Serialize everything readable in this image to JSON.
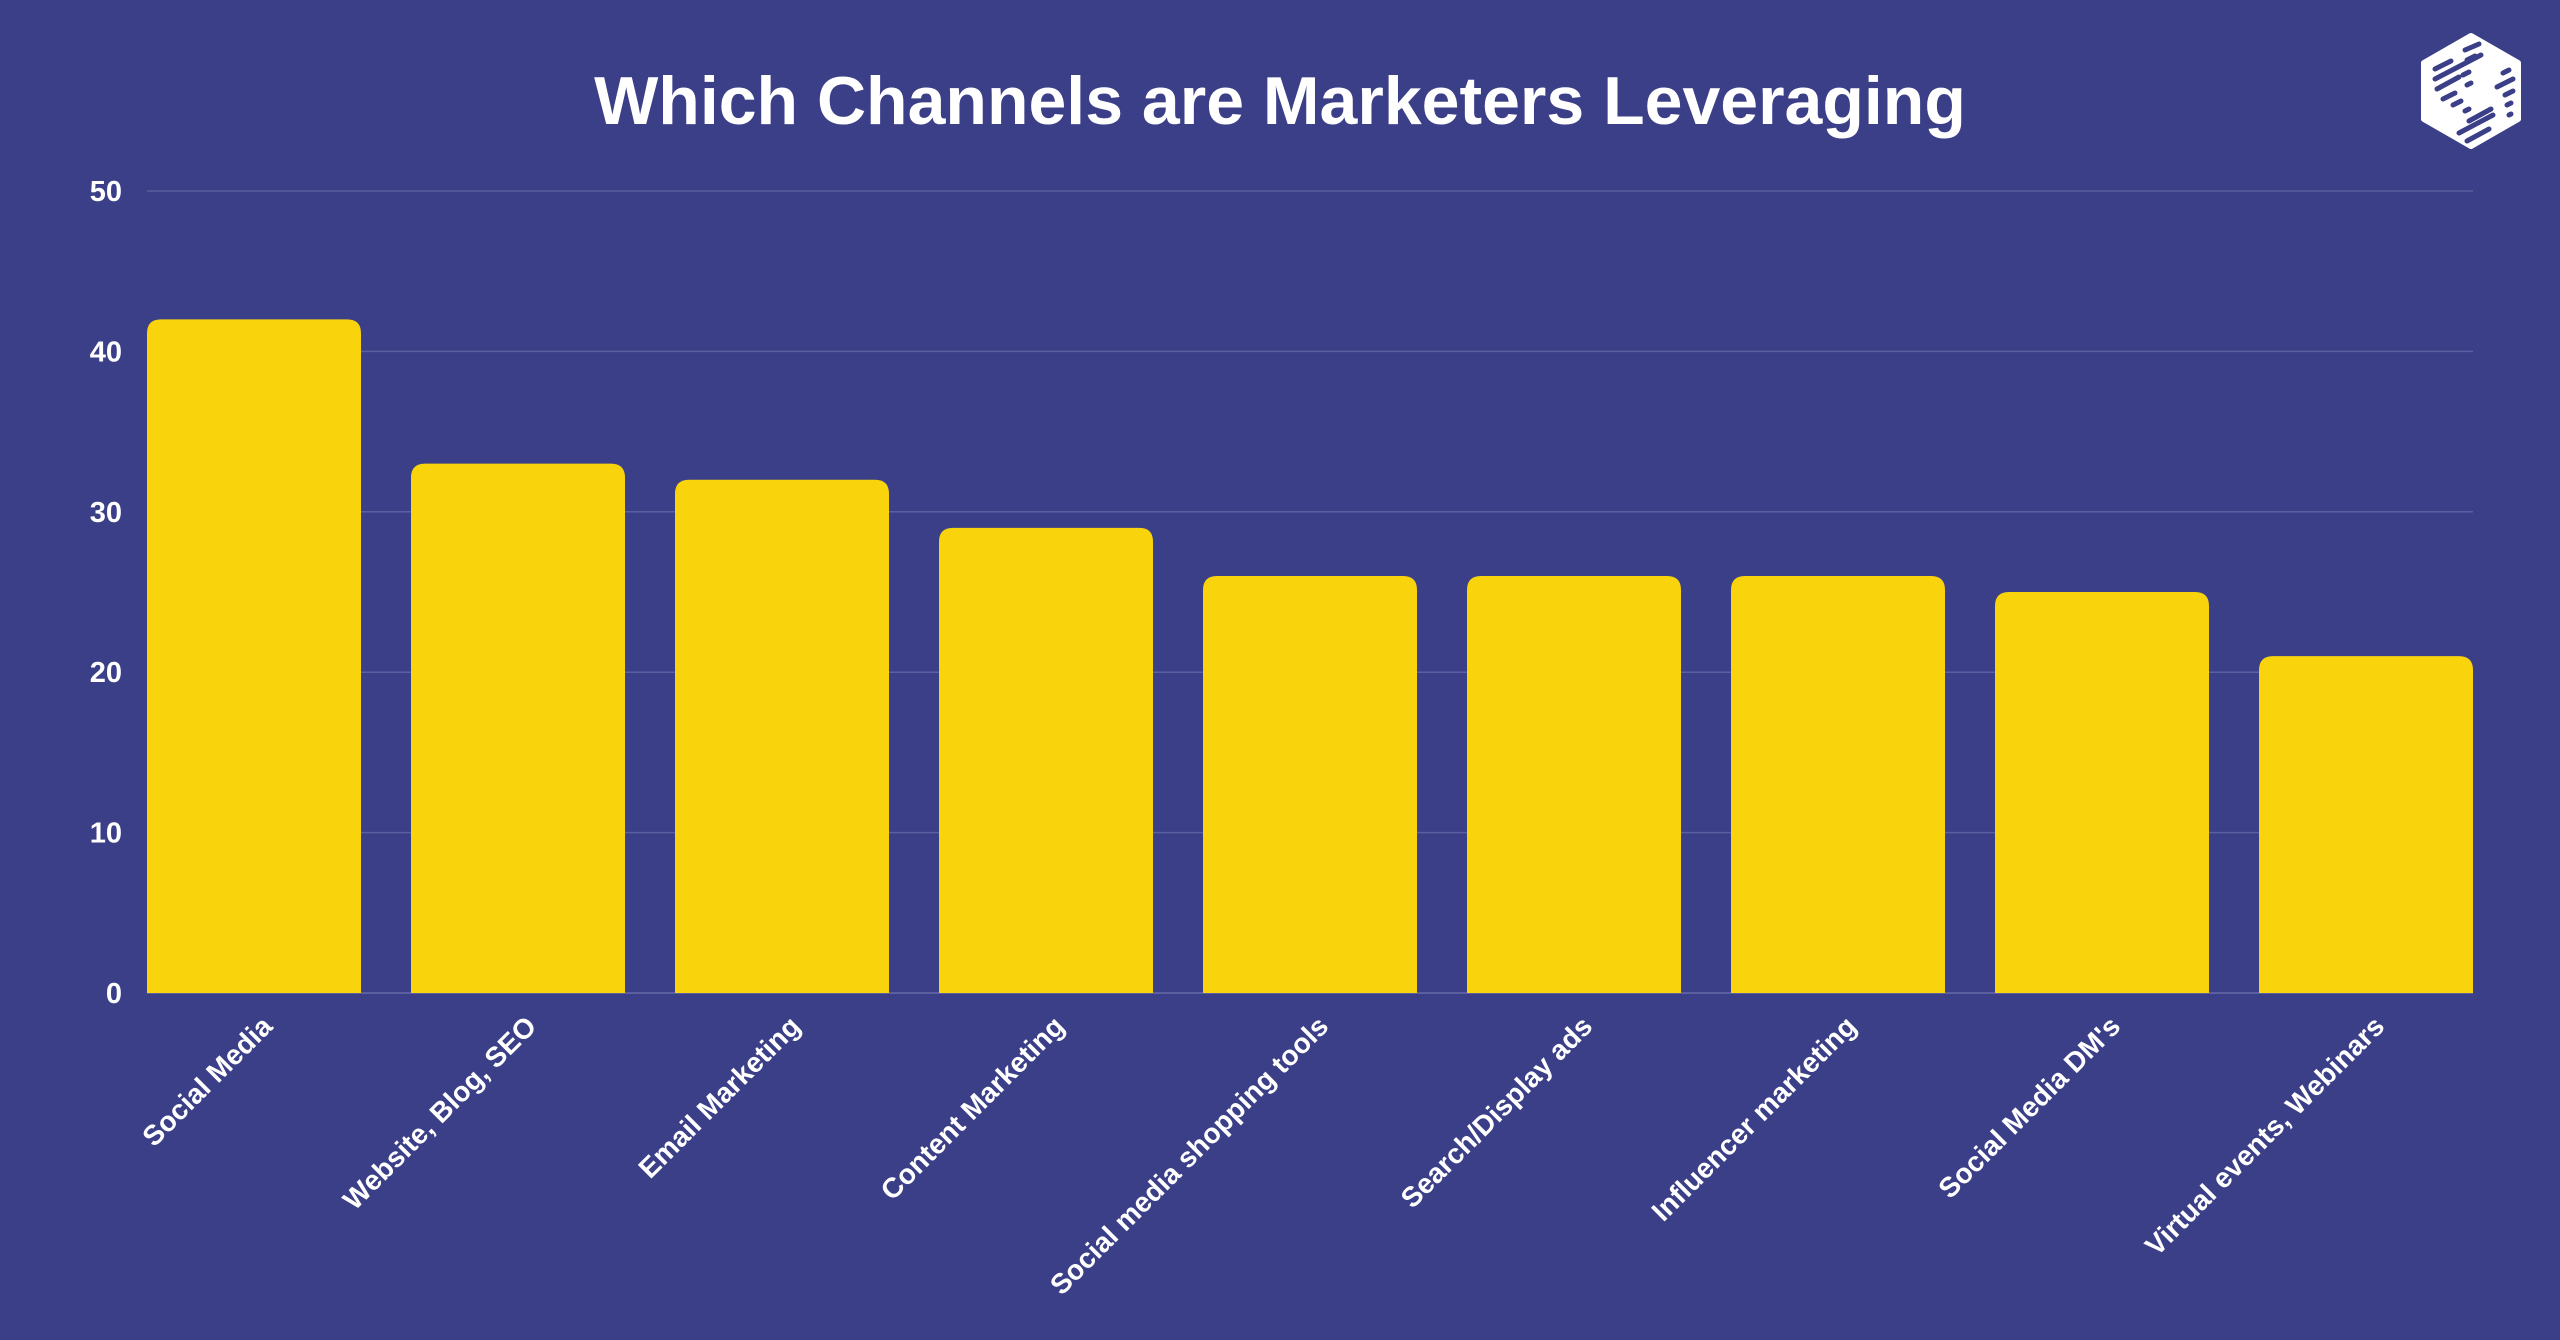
{
  "chart_data": {
    "type": "bar",
    "title": "Which Channels  are Marketers  Leveraging",
    "xlabel": "",
    "ylabel": "",
    "ylim": [
      0,
      50
    ],
    "yticks": [
      0,
      10,
      20,
      30,
      40,
      50
    ],
    "grid": true,
    "categories": [
      "Social Media",
      "Website, Blog, SEO",
      "Email Marketing",
      "Content Marketing",
      "Social media shopping tools",
      "Search/Display ads",
      "Influencer marketing",
      "Social Media DM's",
      "Virtual events, Webinars"
    ],
    "values": [
      42,
      33,
      32,
      29,
      26,
      26,
      26,
      25,
      21
    ]
  },
  "colors": {
    "background": "#3b3f87",
    "bar": "#f9d40c",
    "grid": "#5b5f9f",
    "text": "#ffffff"
  },
  "logo": {
    "icon": "hexagon-logo-icon"
  }
}
